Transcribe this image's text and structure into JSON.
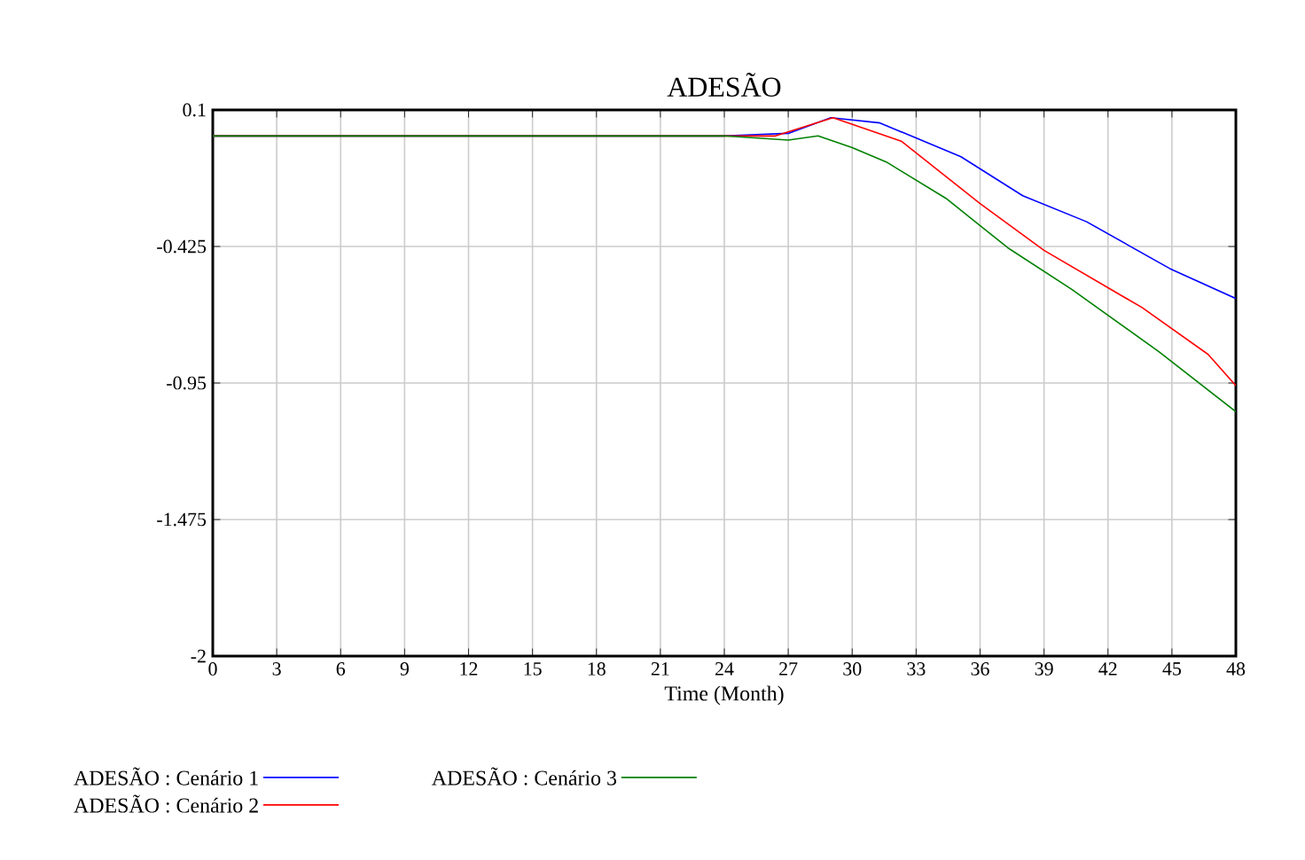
{
  "chart_data": {
    "type": "line",
    "title": "ADESÃO",
    "xlabel": "Time (Month)",
    "xlim": [
      0,
      48
    ],
    "xticks": [
      0,
      3,
      6,
      9,
      12,
      15,
      18,
      21,
      24,
      27,
      30,
      33,
      36,
      39,
      42,
      45,
      48
    ],
    "ylim": [
      -2,
      0.1
    ],
    "yticks": [
      0.1,
      -0.425,
      -0.95,
      -1.475,
      -2
    ],
    "grid": true,
    "legend": "bottom",
    "marker": "none",
    "line_style": "solid",
    "series": [
      {
        "name": "ADESÃO : Cenário 1",
        "color": "#0000ff",
        "x": [
          0,
          24,
          27,
          29,
          31.3,
          35.1,
          38,
          41,
          44.9,
          48
        ],
        "values": [
          0,
          0,
          0.01,
          0.07,
          0.05,
          -0.08,
          -0.23,
          -0.33,
          -0.51,
          -0.625
        ]
      },
      {
        "name": "ADESÃO : Cenário 2",
        "color": "#ff0000",
        "x": [
          0,
          24,
          26.4,
          29.1,
          32.3,
          36,
          39,
          43.6,
          46.7,
          48
        ],
        "values": [
          0,
          0,
          0,
          0.07,
          -0.02,
          -0.26,
          -0.44,
          -0.66,
          -0.84,
          -0.96
        ]
      },
      {
        "name": "ADESÃO : Cenário 3",
        "color": "#008000",
        "x": [
          0,
          24,
          27,
          28.4,
          30,
          31.6,
          34.4,
          37.3,
          40.3,
          44.4,
          48
        ],
        "values": [
          0,
          0,
          -0.016,
          0,
          -0.045,
          -0.1,
          -0.24,
          -0.43,
          -0.59,
          -0.83,
          -1.06
        ]
      }
    ]
  }
}
